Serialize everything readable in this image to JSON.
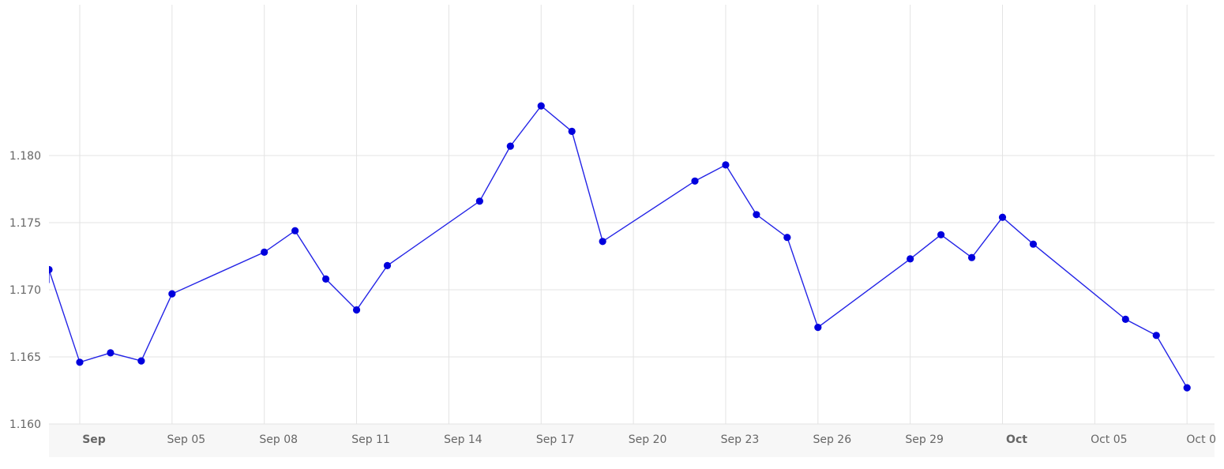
{
  "chart_data": {
    "type": "line",
    "title": "",
    "xlabel": "",
    "ylabel": "",
    "ylim": [
      1.16,
      1.185
    ],
    "xlim": [
      "2020-08-30",
      "2020-10-07"
    ],
    "grid": true,
    "legend": "none",
    "line_color": "#2323e6",
    "marker_color": "#0000dd",
    "y_ticks": [
      "1.160",
      "1.165",
      "1.170",
      "1.175",
      "1.180"
    ],
    "x_ticks": [
      {
        "label": "Sep",
        "date": "2020-09-01",
        "major": true
      },
      {
        "label": "Sep 05",
        "date": "2020-09-04",
        "major": false
      },
      {
        "label": "Sep 08",
        "date": "2020-09-07",
        "major": false
      },
      {
        "label": "Sep 11",
        "date": "2020-09-10",
        "major": false
      },
      {
        "label": "Sep 14",
        "date": "2020-09-13",
        "major": false
      },
      {
        "label": "Sep 17",
        "date": "2020-09-16",
        "major": false
      },
      {
        "label": "Sep 20",
        "date": "2020-09-19",
        "major": false
      },
      {
        "label": "Sep 23",
        "date": "2020-09-22",
        "major": false
      },
      {
        "label": "Sep 26",
        "date": "2020-09-25",
        "major": false
      },
      {
        "label": "Sep 29",
        "date": "2020-09-28",
        "major": false
      },
      {
        "label": "Oct",
        "date": "2020-10-01",
        "major": true
      },
      {
        "label": "Oct 05",
        "date": "2020-10-04",
        "major": false
      },
      {
        "label": "Oct 0",
        "date": "2020-10-07",
        "major": false
      }
    ],
    "series": [
      {
        "x": [
          "2020-08-31",
          "2020-09-01",
          "2020-09-02",
          "2020-09-03",
          "2020-09-04",
          "2020-09-07",
          "2020-09-08",
          "2020-09-09",
          "2020-09-10",
          "2020-09-11",
          "2020-09-14",
          "2020-09-15",
          "2020-09-16",
          "2020-09-17",
          "2020-09-18",
          "2020-09-21",
          "2020-09-22",
          "2020-09-23",
          "2020-09-24",
          "2020-09-25",
          "2020-09-28",
          "2020-09-29",
          "2020-09-30",
          "2020-10-01",
          "2020-10-02",
          "2020-10-05",
          "2020-10-06",
          "2020-10-07"
        ],
        "y": [
          1.1715,
          1.1646,
          1.1653,
          1.1647,
          1.1697,
          1.1728,
          1.1744,
          1.1708,
          1.1685,
          1.1718,
          1.1766,
          1.1807,
          1.1837,
          1.1818,
          1.1736,
          1.1781,
          1.1793,
          1.1756,
          1.1739,
          1.1672,
          1.1723,
          1.1741,
          1.1724,
          1.1754,
          1.1734,
          1.1678,
          1.1666,
          1.1627
        ],
        "lead_in_y": 1.1705
      }
    ]
  }
}
